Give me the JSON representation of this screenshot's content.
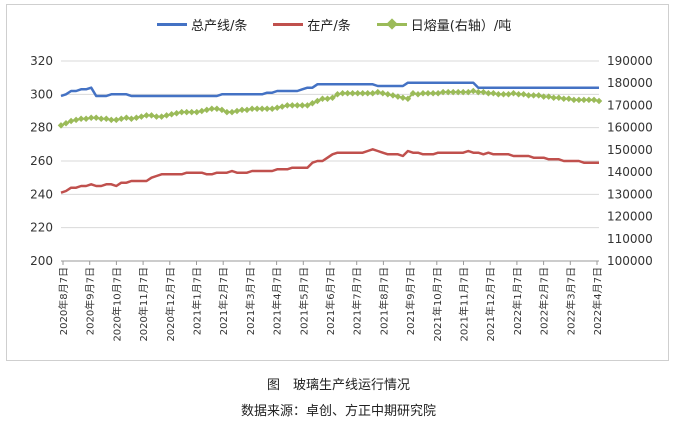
{
  "legend": {
    "total": "总产线/条",
    "active": "在产/条",
    "melt": "日熔量(右轴）/吨"
  },
  "captions": {
    "figure": "图　玻璃生产线运行情况",
    "source": "数据来源：卓创、方正中期研究院"
  },
  "colors": {
    "total": "#4472C4",
    "active": "#C0504D",
    "melt": "#9BBB59",
    "grid": "#d9d9d9"
  },
  "chart_data": {
    "type": "line",
    "y_left": {
      "min": 200,
      "max": 320,
      "step": 20
    },
    "y_right": {
      "min": 100000,
      "max": 190000,
      "step": 10000
    },
    "x_ticks": [
      "2020年8月7日",
      "2020年9月7日",
      "2020年10月7日",
      "2020年11月7日",
      "2020年12月7日",
      "2021年1月7日",
      "2021年2月7日",
      "2021年3月7日",
      "2021年4月7日",
      "2021年5月7日",
      "2021年6月7日",
      "2021年7月7日",
      "2021年8月7日",
      "2021年9月7日",
      "2021年10月7日",
      "2021年11月7日",
      "2021年12月7日",
      "2022年1月7日",
      "2022年2月7日",
      "2022年3月7日",
      "2022年4月7日"
    ],
    "series": [
      {
        "name": "总产线/条",
        "axis": "left",
        "values": [
          299,
          300,
          302,
          302,
          303,
          303,
          304,
          299,
          299,
          299,
          300,
          300,
          300,
          300,
          299,
          299,
          299,
          299,
          299,
          299,
          299,
          299,
          299,
          299,
          299,
          299,
          299,
          299,
          299,
          299,
          299,
          299,
          300,
          300,
          300,
          300,
          300,
          300,
          300,
          300,
          300,
          301,
          301,
          302,
          302,
          302,
          302,
          302,
          303,
          304,
          304,
          306,
          306,
          306,
          306,
          306,
          306,
          306,
          306,
          306,
          306,
          306,
          306,
          305,
          305,
          305,
          305,
          305,
          305,
          307,
          307,
          307,
          307,
          307,
          307,
          307,
          307,
          307,
          307,
          307,
          307,
          307,
          307,
          304,
          304,
          304,
          304,
          304,
          304,
          304,
          304,
          304,
          304,
          304,
          304,
          304,
          304,
          304,
          304,
          304,
          304,
          304,
          304,
          304,
          304,
          304,
          304,
          304
        ]
      },
      {
        "name": "在产/条",
        "axis": "left",
        "values": [
          241,
          242,
          244,
          244,
          245,
          245,
          246,
          245,
          245,
          246,
          246,
          245,
          247,
          247,
          248,
          248,
          248,
          248,
          250,
          251,
          252,
          252,
          252,
          252,
          252,
          253,
          253,
          253,
          253,
          252,
          252,
          253,
          253,
          253,
          254,
          253,
          253,
          253,
          254,
          254,
          254,
          254,
          254,
          255,
          255,
          255,
          256,
          256,
          256,
          256,
          259,
          260,
          260,
          262,
          264,
          265,
          265,
          265,
          265,
          265,
          265,
          266,
          267,
          266,
          265,
          264,
          264,
          264,
          263,
          266,
          265,
          265,
          264,
          264,
          264,
          265,
          265,
          265,
          265,
          265,
          265,
          266,
          265,
          265,
          264,
          265,
          264,
          264,
          264,
          264,
          263,
          263,
          263,
          263,
          262,
          262,
          262,
          261,
          261,
          261,
          260,
          260,
          260,
          260,
          259,
          259,
          259,
          259
        ]
      },
      {
        "name": "日熔量(右轴）/吨",
        "axis": "right",
        "values": [
          161000,
          162000,
          163000,
          163500,
          164000,
          164000,
          164500,
          164500,
          164000,
          164000,
          163500,
          163500,
          164000,
          164500,
          164000,
          164500,
          165000,
          165500,
          165500,
          165000,
          165000,
          165500,
          166000,
          166500,
          167000,
          167000,
          167000,
          167000,
          167500,
          168000,
          168500,
          168500,
          168000,
          167000,
          167000,
          167500,
          168000,
          168000,
          168500,
          168500,
          168500,
          168500,
          168500,
          169000,
          169500,
          170000,
          170000,
          170000,
          170000,
          170000,
          171000,
          172000,
          173000,
          173000,
          173500,
          175000,
          175500,
          175500,
          175500,
          175500,
          175500,
          175500,
          175500,
          176000,
          175500,
          175000,
          174500,
          174000,
          173500,
          173000,
          175500,
          175000,
          175500,
          175500,
          175500,
          175500,
          176000,
          176000,
          176000,
          176000,
          176000,
          176000,
          176500,
          176000,
          176000,
          175500,
          175500,
          175000,
          175000,
          175000,
          175500,
          175000,
          175000,
          174500,
          174500,
          174500,
          174000,
          174000,
          173500,
          173500,
          173000,
          173000,
          172500,
          172500,
          172500,
          172500,
          172500,
          172000
        ]
      }
    ]
  }
}
